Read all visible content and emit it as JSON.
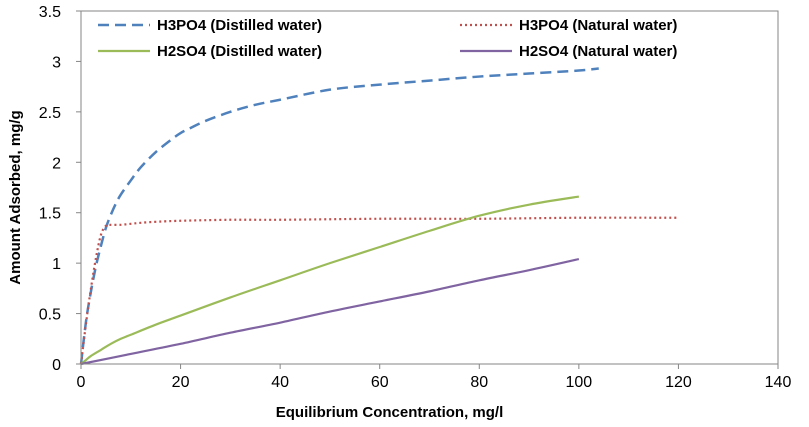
{
  "chart_data": {
    "type": "line",
    "title": "",
    "xlabel": "Equilibrium Concentration, mg/l",
    "ylabel": "Amount Adsorbed, mg/g",
    "xlim": [
      0,
      140
    ],
    "ylim": [
      0,
      3.5
    ],
    "xticks": [
      0,
      20,
      40,
      60,
      80,
      100,
      120,
      140
    ],
    "yticks": [
      0,
      0.5,
      1,
      1.5,
      2,
      2.5,
      3,
      3.5
    ],
    "xtick_labels": [
      "0",
      "20",
      "40",
      "60",
      "80",
      "100",
      "120",
      "140"
    ],
    "ytick_labels": [
      "0",
      "0.5",
      "1",
      "1.5",
      "2",
      "2.5",
      "3",
      "3.5"
    ],
    "grid": false,
    "legend_position": "top",
    "series": [
      {
        "name": "H3PO4 (Distilled water)",
        "color": "#4f81bd",
        "dash": "dashed",
        "x": [
          0,
          1,
          2,
          3,
          4,
          5,
          6,
          7,
          8,
          10,
          12,
          15,
          18,
          20,
          22,
          25,
          30,
          35,
          40,
          50,
          60,
          70,
          80,
          90,
          100,
          104
        ],
        "y": [
          0,
          0.42,
          0.72,
          0.97,
          1.17,
          1.35,
          1.48,
          1.59,
          1.68,
          1.82,
          1.95,
          2.1,
          2.22,
          2.29,
          2.34,
          2.41,
          2.5,
          2.57,
          2.62,
          2.72,
          2.77,
          2.81,
          2.85,
          2.88,
          2.91,
          2.93
        ]
      },
      {
        "name": "H3PO4 (Natural water)",
        "color": "#c0504d",
        "dash": "dotted",
        "x": [
          0,
          1,
          2,
          3,
          4,
          5,
          6,
          8,
          10,
          12,
          15,
          20,
          30,
          40,
          60,
          80,
          100,
          120
        ],
        "y": [
          0,
          0.4,
          0.75,
          1.05,
          1.28,
          1.37,
          1.38,
          1.38,
          1.39,
          1.4,
          1.41,
          1.42,
          1.43,
          1.43,
          1.44,
          1.44,
          1.45,
          1.45
        ]
      },
      {
        "name": "H2SO4 (Distilled water)",
        "color": "#9bbb59",
        "dash": "solid",
        "x": [
          0,
          1,
          2,
          4,
          6,
          8,
          10,
          15,
          20,
          30,
          40,
          50,
          60,
          70,
          80,
          90,
          100
        ],
        "y": [
          0,
          0.04,
          0.08,
          0.14,
          0.2,
          0.25,
          0.29,
          0.39,
          0.48,
          0.66,
          0.83,
          1.0,
          1.16,
          1.32,
          1.47,
          1.58,
          1.66
        ]
      },
      {
        "name": "H2SO4 (Natural water)",
        "color": "#8064a2",
        "dash": "solid",
        "x": [
          0,
          10,
          20,
          30,
          40,
          50,
          60,
          70,
          80,
          90,
          100
        ],
        "y": [
          0,
          0.1,
          0.2,
          0.31,
          0.41,
          0.52,
          0.62,
          0.72,
          0.83,
          0.93,
          1.04
        ]
      }
    ]
  }
}
